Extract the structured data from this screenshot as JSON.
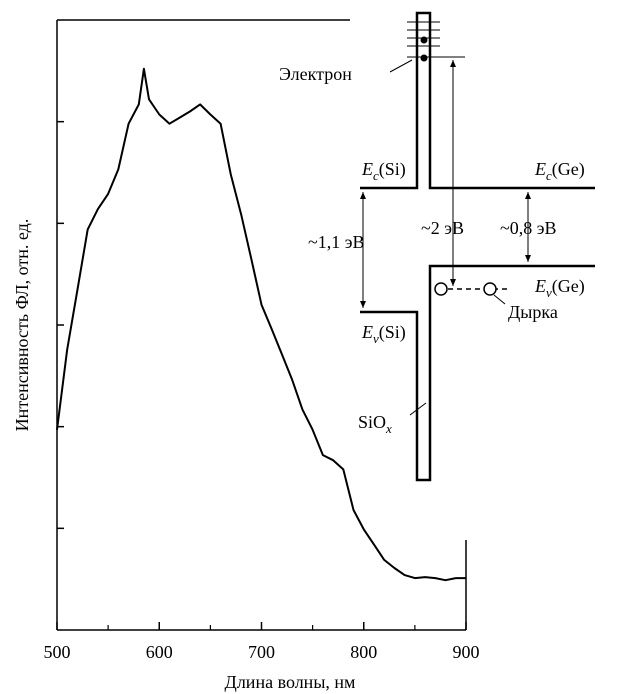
{
  "chart_data": {
    "type": "line",
    "x_label": "Длина волны, нм",
    "y_label": "Интенсивность ФЛ, отн. ед.",
    "x": [
      500,
      510,
      520,
      530,
      540,
      550,
      560,
      570,
      580,
      585,
      590,
      600,
      610,
      620,
      630,
      640,
      650,
      660,
      670,
      680,
      690,
      700,
      710,
      720,
      730,
      740,
      750,
      760,
      770,
      780,
      790,
      800,
      810,
      820,
      830,
      840,
      850,
      860,
      870,
      880,
      890,
      900
    ],
    "values": [
      1.97,
      2.76,
      3.35,
      3.94,
      4.14,
      4.29,
      4.53,
      4.98,
      5.17,
      5.52,
      5.22,
      5.07,
      4.98,
      5.04,
      5.1,
      5.17,
      5.07,
      4.98,
      4.48,
      4.09,
      3.65,
      3.2,
      2.96,
      2.71,
      2.46,
      2.17,
      1.97,
      1.72,
      1.67,
      1.58,
      1.18,
      0.99,
      0.84,
      0.69,
      0.61,
      0.54,
      0.51,
      0.52,
      0.51,
      0.49,
      0.51,
      0.51
    ],
    "color": "#000000",
    "xlim": [
      500,
      900
    ],
    "xticks": [
      500,
      600,
      700,
      800,
      900
    ],
    "xminor_ticks": [
      550,
      650,
      750,
      850
    ],
    "ylim": [
      0,
      6
    ],
    "ytick_marks": [
      1,
      2,
      3,
      4,
      5
    ],
    "annotations": {
      "electron": "Электрон",
      "ec_si": {
        "main": "E",
        "sub": "c",
        "suffix": "(Si)"
      },
      "ec_ge": {
        "main": "E",
        "sub": "c",
        "suffix": "(Ge)"
      },
      "ev_si": {
        "main": "E",
        "sub": "v",
        "suffix": "(Si)"
      },
      "ev_ge": {
        "main": "E",
        "sub": "v",
        "suffix": "(Ge)"
      },
      "gap_si": "~1,1 эВ",
      "gap_2": "~2 эВ",
      "gap_ge": "~0,8 эВ",
      "hole": "Дырка",
      "siox": {
        "main": "SiO",
        "sub": "x"
      }
    }
  }
}
